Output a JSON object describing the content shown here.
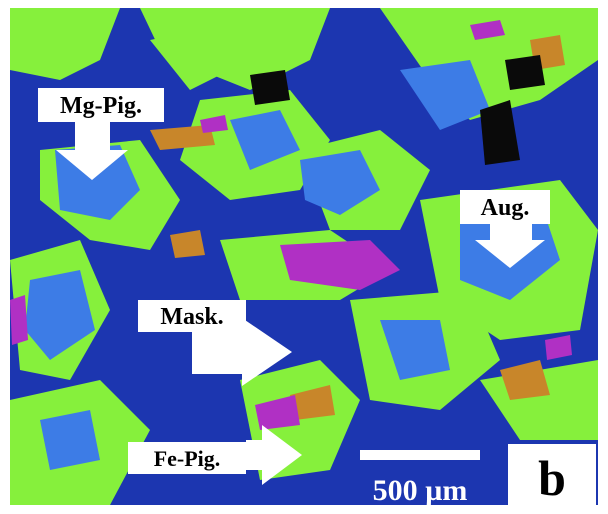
{
  "labels": {
    "mg_pig": "Mg-Pig.",
    "aug": "Aug.",
    "mask": "Mask.",
    "fe_pig": "Fe-Pig."
  },
  "scale_bar": "500 µm",
  "panel": "b"
}
